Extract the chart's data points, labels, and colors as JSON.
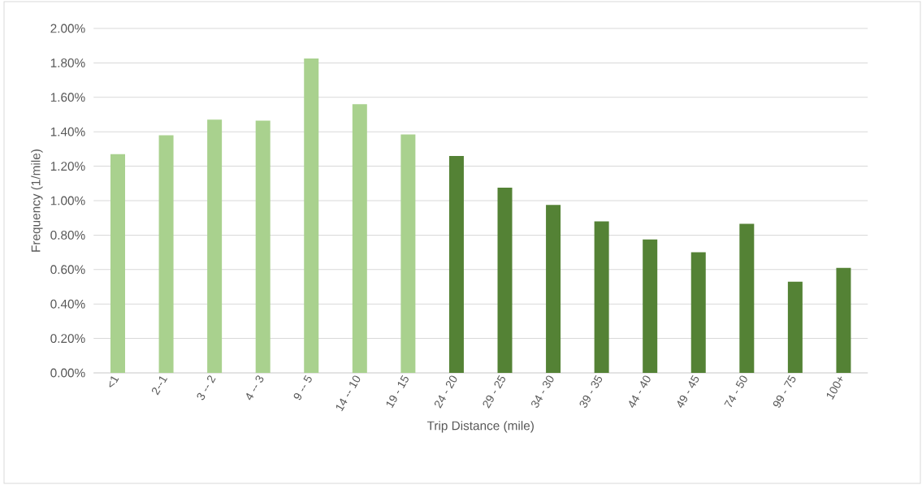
{
  "chart_data": {
    "type": "bar",
    "xlabel": "Trip Distance (mile)",
    "ylabel": "Frequency (1/mile)",
    "categories": [
      "<1",
      "2--1",
      "3 -- 2",
      "4 -- 3",
      "9 -- 5",
      "14 -- 10",
      "19 - 15",
      "24 - 20",
      "29 - 25",
      "34 - 30",
      "39 - 35",
      "44 - 40",
      "49 - 45",
      "74 - 50",
      "99 - 75",
      "100+"
    ],
    "values": [
      1.27,
      1.38,
      1.47,
      1.465,
      1.825,
      1.56,
      1.385,
      1.26,
      1.075,
      0.975,
      0.88,
      0.775,
      0.7,
      0.865,
      0.53,
      0.61
    ],
    "colors": [
      "#a9d18e",
      "#a9d18e",
      "#a9d18e",
      "#a9d18e",
      "#a9d18e",
      "#a9d18e",
      "#a9d18e",
      "#548235",
      "#548235",
      "#548235",
      "#548235",
      "#548235",
      "#548235",
      "#548235",
      "#548235",
      "#548235"
    ],
    "ylim": [
      0,
      2
    ],
    "yticks": [
      {
        "value": 0,
        "label": "0.00%"
      },
      {
        "value": 0.2,
        "label": "0.20%"
      },
      {
        "value": 0.4,
        "label": "0.40%"
      },
      {
        "value": 0.6,
        "label": "0.60%"
      },
      {
        "value": 0.8,
        "label": "0.80%"
      },
      {
        "value": 1.0,
        "label": "1.00%"
      },
      {
        "value": 1.2,
        "label": "1.20%"
      },
      {
        "value": 1.4,
        "label": "1.40%"
      },
      {
        "value": 1.6,
        "label": "1.60%"
      },
      {
        "value": 1.8,
        "label": "1.80%"
      },
      {
        "value": 2.0,
        "label": "2.00%"
      }
    ],
    "grid": "y"
  }
}
